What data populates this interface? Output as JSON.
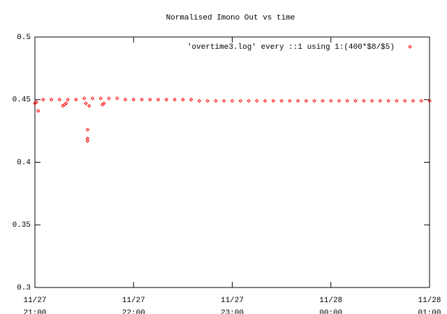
{
  "chart_data": {
    "type": "scatter",
    "title": "Normalised Imono Out vs time",
    "xlim": [
      "11/27 21:00",
      "11/28 01:00"
    ],
    "xticks": [
      {
        "value": "11/27 21:00",
        "label": "11/27 21:00"
      },
      {
        "value": "11/27 22:00",
        "label": "11/27 22:00"
      },
      {
        "value": "11/27 23:00",
        "label": "11/27 23:00"
      },
      {
        "value": "11/28 00:00",
        "label": "11/28 00:00"
      },
      {
        "value": "11/28 01:00",
        "label": "11/28 01:00"
      }
    ],
    "ylim": [
      0.3,
      0.5
    ],
    "yticks": [
      0.3,
      0.35,
      0.4,
      0.45,
      0.5
    ],
    "legend": "top-right",
    "series": [
      {
        "name": "'overtime3.log' every ::1 using 1:(400*$8/$5)",
        "color": "#ff0000",
        "x": [
          "11/27 21:00",
          "11/27 21:05",
          "11/27 21:10",
          "11/27 21:15",
          "11/27 21:20",
          "11/27 21:25",
          "11/27 21:30",
          "11/27 21:35",
          "11/27 21:40",
          "11/27 21:45",
          "11/27 21:50",
          "11/27 21:55",
          "11/27 22:00",
          "11/27 22:05",
          "11/27 22:10",
          "11/27 22:15",
          "11/27 22:20",
          "11/27 22:25",
          "11/27 22:30",
          "11/27 22:35",
          "11/27 22:40",
          "11/27 22:45",
          "11/27 22:50",
          "11/27 22:55",
          "11/27 23:00",
          "11/27 23:05",
          "11/27 23:10",
          "11/27 23:15",
          "11/27 23:20",
          "11/27 23:25",
          "11/27 23:30",
          "11/27 23:35",
          "11/27 23:40",
          "11/27 23:45",
          "11/27 23:50",
          "11/27 23:55",
          "11/28 00:00",
          "11/28 00:05",
          "11/28 00:10",
          "11/28 00:15",
          "11/28 00:20",
          "11/28 00:25",
          "11/28 00:30",
          "11/28 00:35",
          "11/28 00:40",
          "11/28 00:45",
          "11/28 00:50",
          "11/28 00:55",
          "11/28 01:00",
          "11/27 21:01",
          "11/27 21:02",
          "11/27 21:17",
          "11/27 21:18",
          "11/27 21:19",
          "11/27 21:31",
          "11/27 21:32",
          "11/27 21:32",
          "11/27 21:32",
          "11/27 21:33",
          "11/27 21:41",
          "11/27 21:42"
        ],
        "values": [
          0.447,
          0.45,
          0.45,
          0.45,
          0.45,
          0.45,
          0.451,
          0.451,
          0.451,
          0.451,
          0.451,
          0.45,
          0.45,
          0.45,
          0.45,
          0.45,
          0.45,
          0.45,
          0.45,
          0.45,
          0.449,
          0.449,
          0.449,
          0.449,
          0.449,
          0.449,
          0.449,
          0.449,
          0.449,
          0.449,
          0.449,
          0.449,
          0.449,
          0.449,
          0.449,
          0.449,
          0.449,
          0.449,
          0.449,
          0.449,
          0.449,
          0.449,
          0.449,
          0.449,
          0.449,
          0.449,
          0.449,
          0.449,
          0.449,
          0.448,
          0.441,
          0.445,
          0.446,
          0.447,
          0.447,
          0.426,
          0.419,
          0.417,
          0.445,
          0.446,
          0.447
        ]
      }
    ]
  }
}
